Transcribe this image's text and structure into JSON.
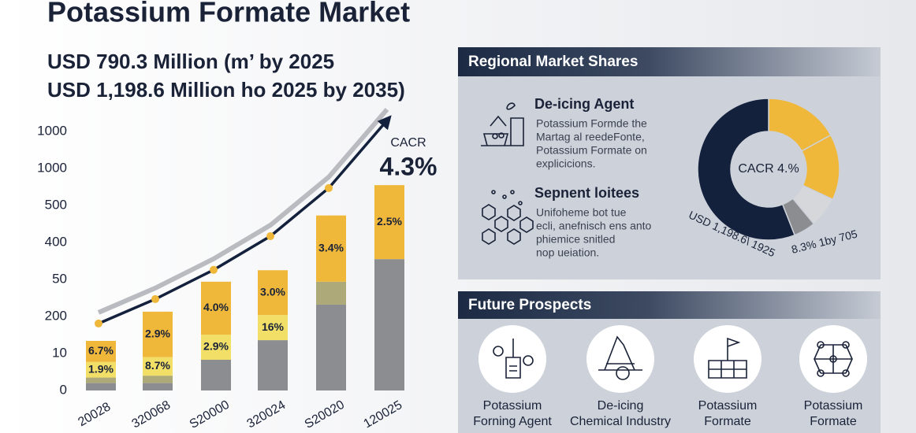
{
  "header": {
    "title": "Potassium Formate Market",
    "subtitle_lines": [
      "USD 790.3 Million (m’ by 2025",
      "USD 1,198.6 Million ho 2025 by 2035)"
    ]
  },
  "chart_data": {
    "type": "bar",
    "stacked": true,
    "categories": [
      "20028",
      "320068",
      "S20000",
      "320024",
      "S20020",
      "120025"
    ],
    "ylim": [
      0,
      7
    ],
    "yticks": [
      {
        "value": 0,
        "label": "0"
      },
      {
        "value": 1,
        "label": "10"
      },
      {
        "value": 2,
        "label": "200"
      },
      {
        "value": 3,
        "label": "50"
      },
      {
        "value": 4,
        "label": "400"
      },
      {
        "value": 5,
        "label": "500"
      },
      {
        "value": 6,
        "label": "1000"
      },
      {
        "value": 7,
        "label": "1000"
      }
    ],
    "series": [
      {
        "color": "#8c8d90",
        "values": [
          0.2,
          0.2,
          0.83,
          1.36,
          2.32,
          3.55
        ]
      },
      {
        "color": "#aea978",
        "values": [
          0.15,
          0.2,
          null,
          null,
          0.62,
          null
        ]
      },
      {
        "color": "#f1df68",
        "values": [
          0.42,
          0.5,
          0.68,
          0.68,
          null,
          null
        ],
        "value_labels": [
          "1.9%",
          "8.7%",
          "2.9%",
          "16%",
          null,
          null
        ]
      },
      {
        "color": "#f0b83a",
        "values": [
          0.57,
          1.23,
          1.43,
          1.21,
          1.79,
          2.0
        ],
        "value_labels": [
          "6.7%",
          "2.9%",
          "4.0%",
          "3.0%",
          "3.4%",
          "2.5%"
        ]
      },
      {
        "type": "line",
        "color": "#14213d",
        "values": [
          1.81,
          2.47,
          3.26,
          4.17,
          5.47,
          7.3
        ]
      }
    ],
    "annotation": {
      "label": "CACR",
      "value": "4.3%"
    }
  },
  "regional": {
    "title": "Regional Market Shares",
    "items": [
      {
        "title": "De-icing Agent",
        "lines": [
          "Potassium Formde the",
          "Martag al reedeFonte,",
          "Potassium Formate on",
          "explicicions."
        ]
      },
      {
        "title": "Sepnent loitees",
        "lines": [
          "Unifoheme bot tue",
          "ecli, anefnisch ens anto",
          "phiemice snitled",
          "nop ueiation."
        ]
      }
    ],
    "donut": {
      "type": "pie",
      "values": [
        17,
        15,
        7,
        5,
        56
      ],
      "colors": [
        "#f0b83a",
        "#f0b83a",
        "#d5d7db",
        "#8c8d90",
        "#14213d"
      ],
      "center_label": "CACR 4.%",
      "labels": [
        "USD 1,198.6\\ 1925",
        "8.3% 1by 705"
      ]
    }
  },
  "future": {
    "title": "Future Prospects",
    "items": [
      {
        "lines": [
          "Potassium",
          "Forning Agent"
        ]
      },
      {
        "lines": [
          "De-icing",
          "Chemical Industry"
        ]
      },
      {
        "lines": [
          "Potassium",
          "Formate"
        ]
      },
      {
        "lines": [
          "Potassium",
          "Formate"
        ]
      }
    ]
  }
}
